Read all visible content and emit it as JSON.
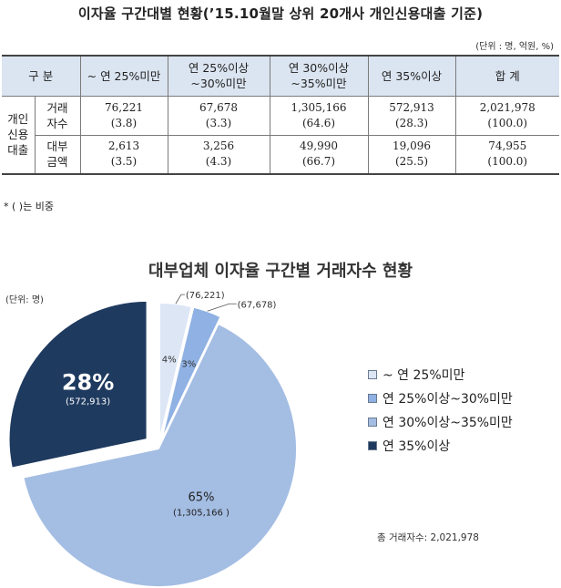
{
  "title": "이자율 구간대별 현황(’15.10월말 상위 20개사 개인신용대출 기준)",
  "unit_note": "(단위 : 명, 억원, %)",
  "table": {
    "header": [
      "구 분",
      "~ 연 25%미만",
      "연 25%이상\n~30%미만",
      "연 30%이상\n~35%미만",
      "연 35%이상",
      "합    계"
    ],
    "group_label": "개인\n신용\n대출",
    "rows": [
      {
        "label": "거래\n자수",
        "values": [
          "76,221\n(3.8)",
          "67,678\n(3.3)",
          "1,305,166\n(64.6)",
          "572,913\n(28.3)",
          "2,021,978\n(100.0)"
        ]
      },
      {
        "label": "대부\n금액",
        "values": [
          "2,613\n(3.5)",
          "3,256\n(4.3)",
          "49,990\n(66.7)",
          "19,096\n(25.5)",
          "74,955\n(100.0)"
        ]
      }
    ]
  },
  "footnote": "* ( )는 비중",
  "chart_data": {
    "type": "pie",
    "title": "대부업체 이자율 구간별 거래자수 현황",
    "unit_label": "(단위: 명)",
    "slices": [
      {
        "name": "~ 연 25%미만",
        "value": 76221,
        "pct_label": "4%",
        "value_label": "(76,221)",
        "color": "#dce6f5"
      },
      {
        "name": "연 25%이상~30%미만",
        "value": 67678,
        "pct_label": "3%",
        "value_label": "(67,678)",
        "color": "#8fb1e3"
      },
      {
        "name": "연 30%이상~35%미만",
        "value": 1305166,
        "pct_label": "65%",
        "value_label": "(1,305,166 )",
        "color": "#a4bde3"
      },
      {
        "name": "연 35%이상",
        "value": 572913,
        "pct_label": "28%",
        "value_label": "(572,913)",
        "color": "#1f3a5f"
      }
    ],
    "legend_position": "right",
    "total_label": "총 거래자수: 2,021,978"
  }
}
